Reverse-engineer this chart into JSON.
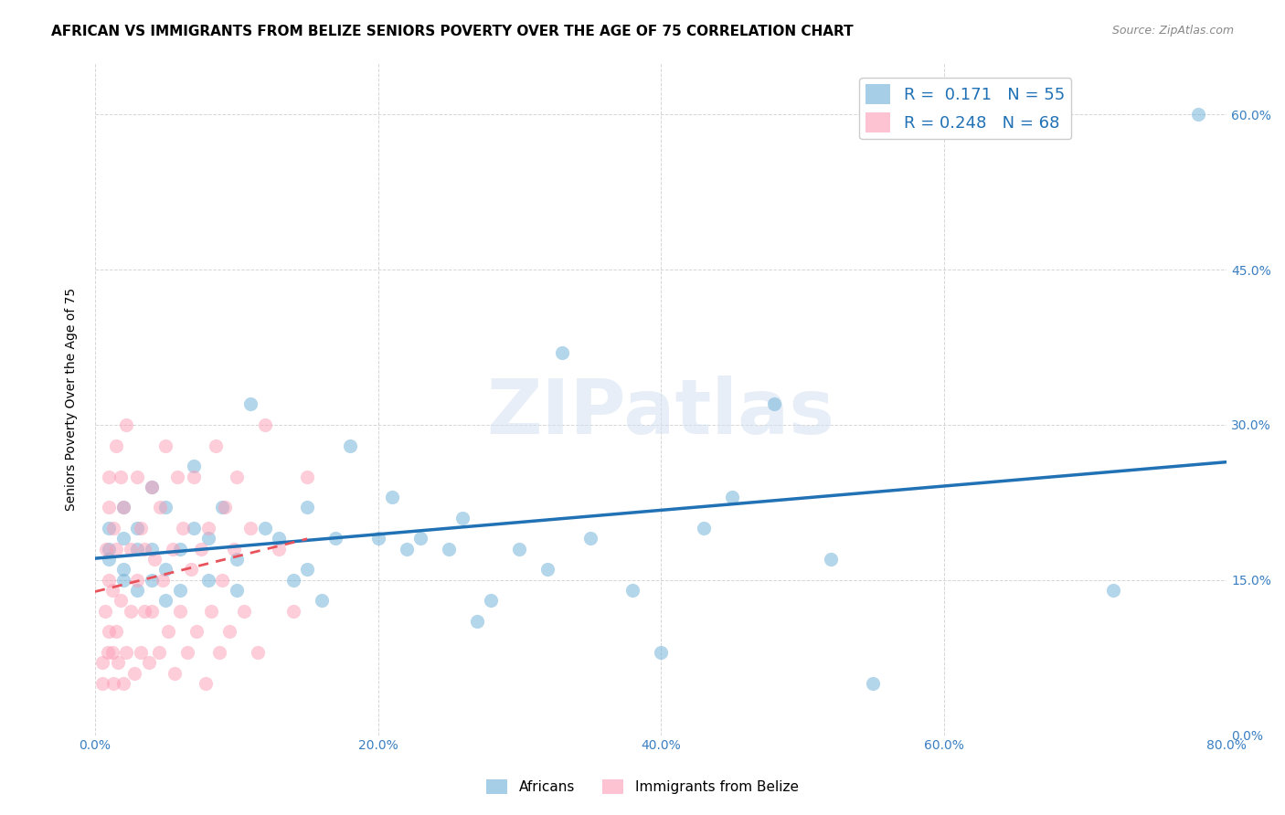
{
  "title": "AFRICAN VS IMMIGRANTS FROM BELIZE SENIORS POVERTY OVER THE AGE OF 75 CORRELATION CHART",
  "source": "Source: ZipAtlas.com",
  "ylabel": "Seniors Poverty Over the Age of 75",
  "xlabel_ticks": [
    "0.0%",
    "20.0%",
    "40.0%",
    "60.0%",
    "80.0%"
  ],
  "xlabel_vals": [
    0,
    0.2,
    0.4,
    0.6,
    0.8
  ],
  "ylabel_ticks": [
    "0.0%",
    "15.0%",
    "30.0%",
    "45.0%",
    "60.0%"
  ],
  "ylabel_vals": [
    0,
    0.15,
    0.3,
    0.45,
    0.6
  ],
  "xlim": [
    0,
    0.8
  ],
  "ylim": [
    0,
    0.65
  ],
  "R_african": 0.171,
  "N_african": 55,
  "R_belize": 0.248,
  "N_belize": 68,
  "color_african": "#6baed6",
  "color_belize": "#fc9cb4",
  "african_x": [
    0.01,
    0.01,
    0.01,
    0.02,
    0.02,
    0.02,
    0.02,
    0.03,
    0.03,
    0.03,
    0.04,
    0.04,
    0.04,
    0.05,
    0.05,
    0.05,
    0.06,
    0.06,
    0.07,
    0.07,
    0.08,
    0.08,
    0.09,
    0.1,
    0.1,
    0.11,
    0.12,
    0.13,
    0.14,
    0.15,
    0.15,
    0.16,
    0.17,
    0.18,
    0.2,
    0.21,
    0.22,
    0.23,
    0.25,
    0.26,
    0.27,
    0.28,
    0.3,
    0.32,
    0.33,
    0.35,
    0.38,
    0.4,
    0.43,
    0.45,
    0.48,
    0.52,
    0.55,
    0.72,
    0.78
  ],
  "african_y": [
    0.18,
    0.2,
    0.17,
    0.19,
    0.16,
    0.22,
    0.15,
    0.14,
    0.18,
    0.2,
    0.15,
    0.18,
    0.24,
    0.16,
    0.22,
    0.13,
    0.18,
    0.14,
    0.2,
    0.26,
    0.15,
    0.19,
    0.22,
    0.14,
    0.17,
    0.32,
    0.2,
    0.19,
    0.15,
    0.22,
    0.16,
    0.13,
    0.19,
    0.28,
    0.19,
    0.23,
    0.18,
    0.19,
    0.18,
    0.21,
    0.11,
    0.13,
    0.18,
    0.16,
    0.37,
    0.19,
    0.14,
    0.08,
    0.2,
    0.23,
    0.32,
    0.17,
    0.05,
    0.14,
    0.6
  ],
  "belize_x": [
    0.005,
    0.005,
    0.007,
    0.008,
    0.009,
    0.01,
    0.01,
    0.01,
    0.01,
    0.012,
    0.012,
    0.013,
    0.013,
    0.015,
    0.015,
    0.015,
    0.016,
    0.018,
    0.018,
    0.02,
    0.02,
    0.022,
    0.022,
    0.025,
    0.025,
    0.028,
    0.03,
    0.03,
    0.032,
    0.032,
    0.035,
    0.035,
    0.038,
    0.04,
    0.04,
    0.042,
    0.045,
    0.046,
    0.048,
    0.05,
    0.052,
    0.055,
    0.056,
    0.058,
    0.06,
    0.062,
    0.065,
    0.068,
    0.07,
    0.072,
    0.075,
    0.078,
    0.08,
    0.082,
    0.085,
    0.088,
    0.09,
    0.092,
    0.095,
    0.098,
    0.1,
    0.105,
    0.11,
    0.115,
    0.12,
    0.13,
    0.14,
    0.15
  ],
  "belize_y": [
    0.05,
    0.07,
    0.12,
    0.18,
    0.08,
    0.15,
    0.22,
    0.1,
    0.25,
    0.08,
    0.14,
    0.05,
    0.2,
    0.1,
    0.28,
    0.18,
    0.07,
    0.25,
    0.13,
    0.05,
    0.22,
    0.08,
    0.3,
    0.12,
    0.18,
    0.06,
    0.25,
    0.15,
    0.08,
    0.2,
    0.12,
    0.18,
    0.07,
    0.24,
    0.12,
    0.17,
    0.08,
    0.22,
    0.15,
    0.28,
    0.1,
    0.18,
    0.06,
    0.25,
    0.12,
    0.2,
    0.08,
    0.16,
    0.25,
    0.1,
    0.18,
    0.05,
    0.2,
    0.12,
    0.28,
    0.08,
    0.15,
    0.22,
    0.1,
    0.18,
    0.25,
    0.12,
    0.2,
    0.08,
    0.3,
    0.18,
    0.12,
    0.25
  ],
  "watermark": "ZIPatlas",
  "title_fontsize": 11,
  "label_fontsize": 10,
  "tick_fontsize": 10
}
